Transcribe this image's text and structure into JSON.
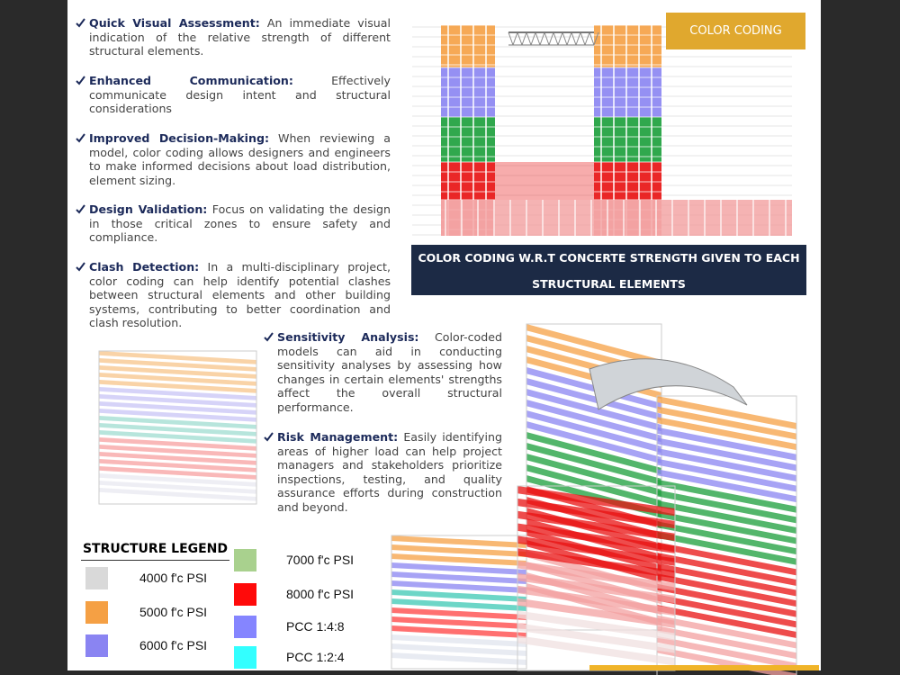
{
  "bullets_left": [
    {
      "title": "Quick Visual Assessment:",
      "text": "An immediate visual indication of the relative strength of different structural elements."
    },
    {
      "title": "Enhanced Communication:",
      "text": "Effectively communicate design intent and structural considerations"
    },
    {
      "title": "Improved Decision-Making:",
      "text": "When reviewing a model, color coding allows designers and engineers to make informed decisions about load distribution, element sizing."
    },
    {
      "title": "Design Validation:",
      "text": "Focus on validating the design in those critical zones to ensure safety and compliance."
    },
    {
      "title": "Clash Detection:",
      "text": "In a multi-disciplinary project, color coding can help identify potential clashes between structural elements and other building systems, contributing to better coordination and clash resolution."
    }
  ],
  "bullets_middle": [
    {
      "title": "Sensitivity Analysis:",
      "text": "Color-coded models can aid in conducting sensitivity analyses by assessing how changes in certain elements' strengths affect the overall structural performance."
    },
    {
      "title": "Risk Management:",
      "text": "Easily identifying areas of higher load can help project managers and stakeholders prioritize inspections, testing, and quality assurance efforts during construction and beyond."
    }
  ],
  "badge": "COLOR CODING",
  "banner": {
    "lines": [
      "COLOR CODING W.R.T CONCERTE STRENGTH GIVEN TO EACH",
      "STRUCTURAL ELEMENTS"
    ]
  },
  "legend": {
    "title": "STRUCTURE LEGEND",
    "items": [
      {
        "label": "4000 f'c PSI",
        "color": "#d9d9d9"
      },
      {
        "label": "5000 f'c PSI",
        "color": "#f5a044"
      },
      {
        "label": "6000 f'c PSI",
        "color": "#8a84f2"
      },
      {
        "label": "7000 f'c PSI",
        "color": "#a9d18e"
      },
      {
        "label": "8000 f'c PSI",
        "color": "#ff0a0a"
      },
      {
        "label": "PCC 1:4:8",
        "color": "#8585ff"
      },
      {
        "label": "PCC 1:2:4",
        "color": "#33ffff"
      }
    ]
  }
}
